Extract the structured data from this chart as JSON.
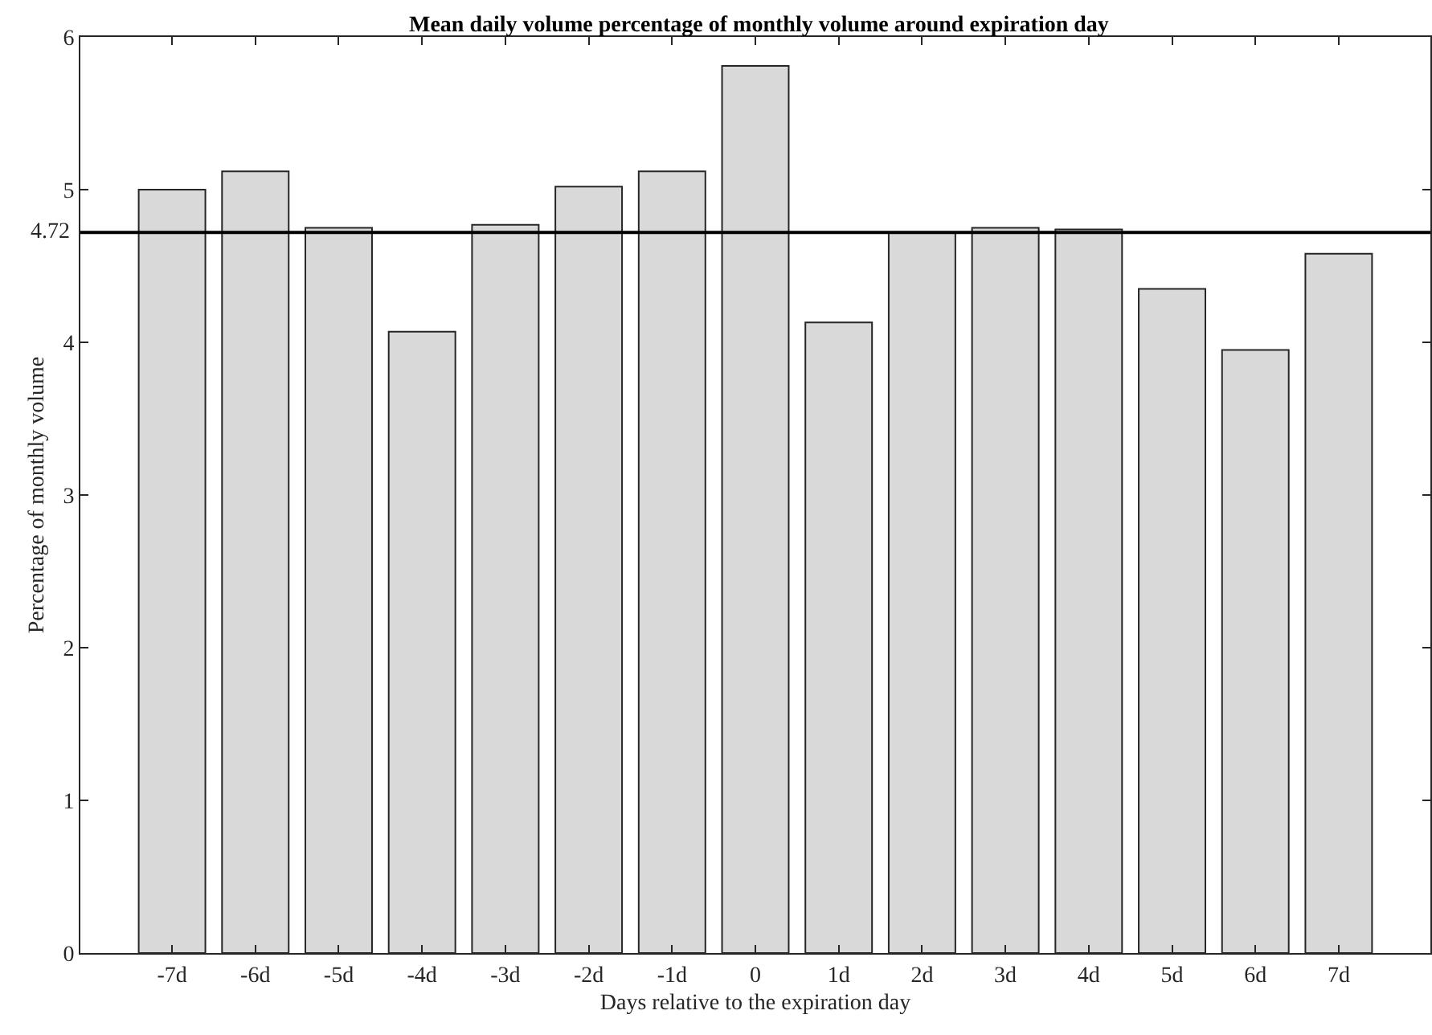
{
  "chart_data": {
    "type": "bar",
    "title": "Mean daily volume percentage of monthly volume around expiration day",
    "xlabel": "Days relative to the expiration day",
    "ylabel": "Percentage of monthly volume",
    "categories": [
      "-7d",
      "-6d",
      "-5d",
      "-4d",
      "-3d",
      "-2d",
      "-1d",
      "0",
      "1d",
      "2d",
      "3d",
      "4d",
      "5d",
      "6d",
      "7d"
    ],
    "values": [
      5.0,
      5.12,
      4.75,
      4.07,
      4.77,
      5.02,
      5.12,
      5.81,
      4.13,
      4.72,
      4.75,
      4.74,
      4.35,
      3.95,
      4.58
    ],
    "color": "#d9d9d9",
    "ylim": [
      0,
      6
    ],
    "yticks": [
      0,
      1,
      2,
      3,
      4,
      5,
      6
    ],
    "grid": false,
    "ref_lines": [
      {
        "axis": "y",
        "value": 4.72,
        "label": "4.72",
        "color": "#000000",
        "line_style": "solid"
      }
    ]
  }
}
